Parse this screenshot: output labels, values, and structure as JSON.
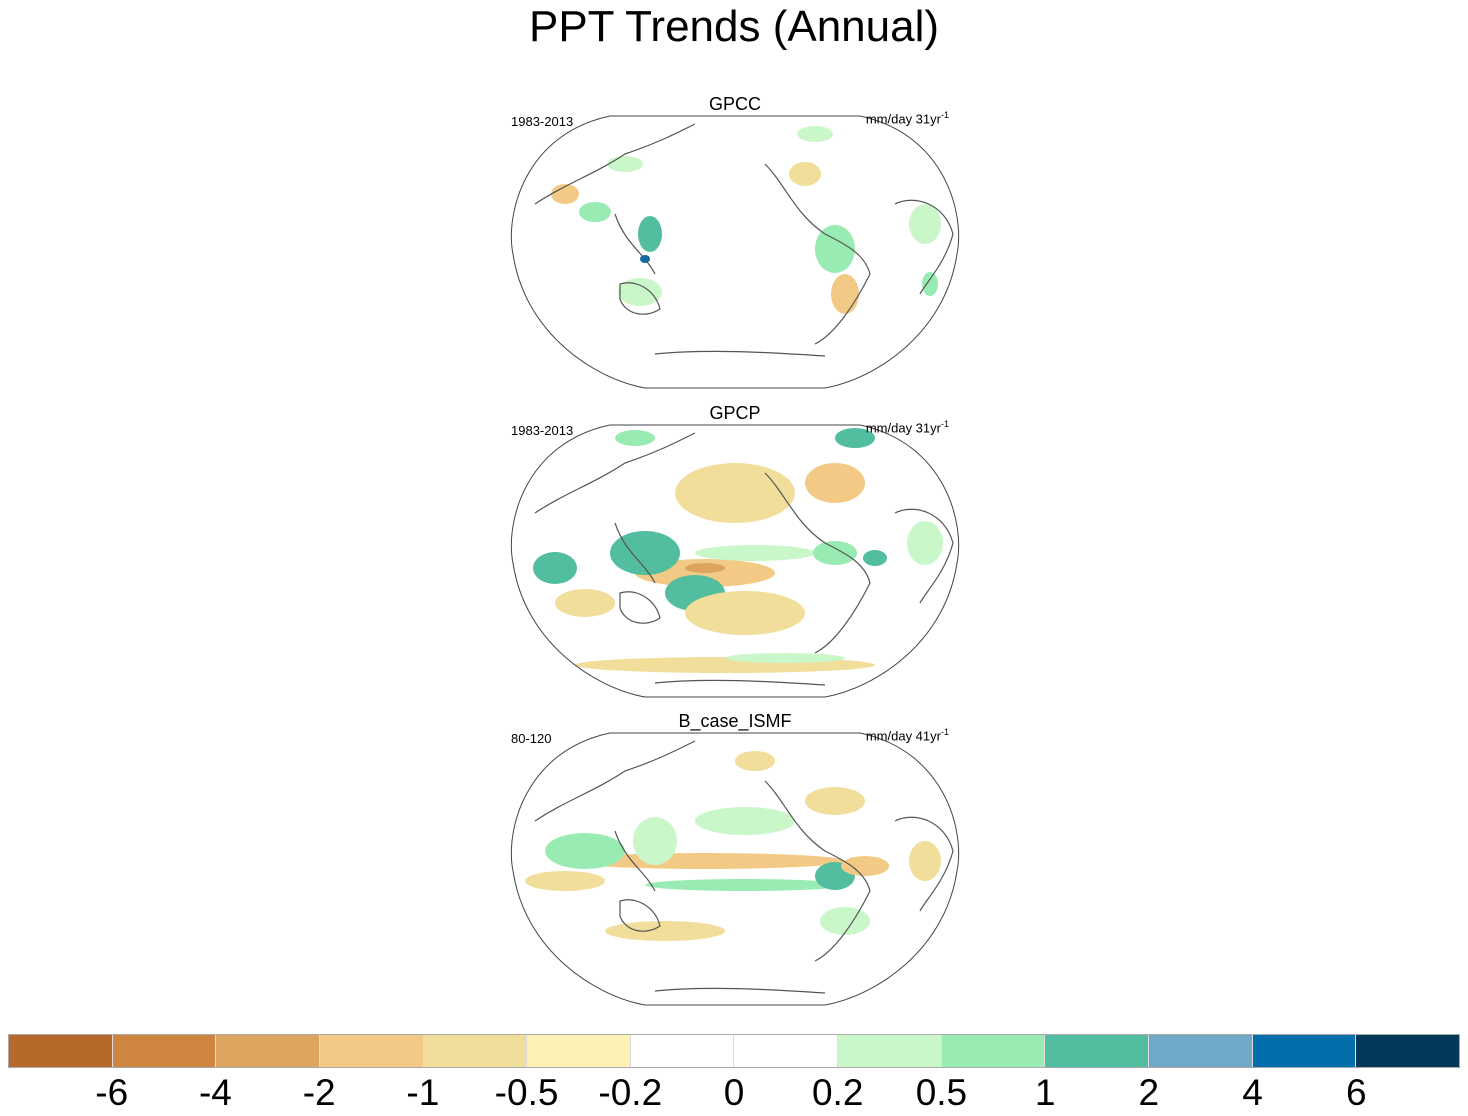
{
  "title": "PPT Trends (Annual)",
  "panels": [
    {
      "name": "GPCC",
      "period": "1983-2013",
      "units": "mm/day 31yr",
      "units_exp": "-1"
    },
    {
      "name": "GPCP",
      "period": "1983-2013",
      "units": "mm/day 31yr",
      "units_exp": "-1"
    },
    {
      "name": "B_case_ISMF",
      "period": "80-120",
      "units": "mm/day 41yr",
      "units_exp": "-1"
    }
  ],
  "colorbar": {
    "colors": [
      "#b5692a",
      "#cd853f",
      "#dca45e",
      "#f2ca85",
      "#f0de9a",
      "#fdf2b6",
      "#ffffff",
      "#ffffff",
      "#c9f7c9",
      "#98ebb2",
      "#52bd9f",
      "#6fa9c7",
      "#036eac",
      "#033859"
    ],
    "labels": [
      "-6",
      "-4",
      "-2",
      "-1",
      "-0.5",
      "-0.2",
      "0",
      "0.2",
      "0.5",
      "1",
      "2",
      "4",
      "6"
    ]
  }
}
